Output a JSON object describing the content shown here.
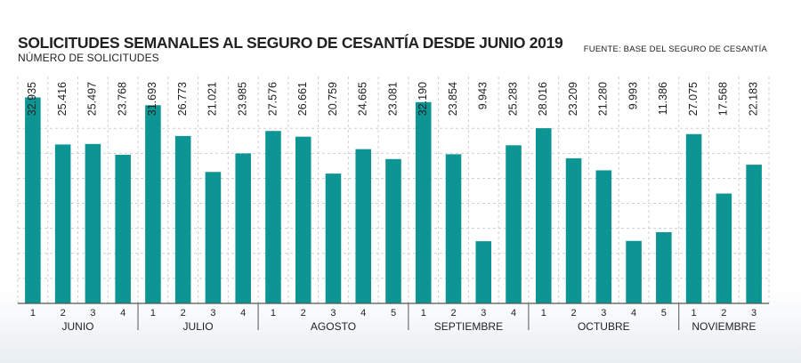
{
  "title": "SOLICITUDES SEMANALES AL SEGURO DE CESANTÍA DESDE JUNIO 2019",
  "subtitle": "NÚMERO DE SOLICITUDES",
  "source": "FUENTE: BASE DEL SEGURO DE CESANTÍA",
  "colors": {
    "bar": "#0c9592"
  },
  "chart_data": {
    "type": "bar",
    "title": "SOLICITUDES SEMANALES AL SEGURO DE CESANTÍA DESDE JUNIO 2019",
    "subtitle": "NÚMERO DE SOLICITUDES",
    "ylim": [
      0,
      36000
    ],
    "grid": true,
    "months": [
      {
        "name": "JUNIO",
        "weeks": [
          "1",
          "2",
          "3",
          "4"
        ],
        "values": [
          32935,
          25416,
          25497,
          23768
        ],
        "labels": [
          "32.935",
          "25.416",
          "25.497",
          "23.768"
        ]
      },
      {
        "name": "JULIO",
        "weeks": [
          "1",
          "2",
          "3",
          "4"
        ],
        "values": [
          31693,
          26773,
          21021,
          23985
        ],
        "labels": [
          "31.693",
          "26.773",
          "21.021",
          "23.985"
        ]
      },
      {
        "name": "AGOSTO",
        "weeks": [
          "1",
          "2",
          "3",
          "4",
          "5"
        ],
        "values": [
          27576,
          26661,
          20759,
          24665,
          23081
        ],
        "labels": [
          "27.576",
          "26.661",
          "20.759",
          "24.665",
          "23.081"
        ]
      },
      {
        "name": "SEPTIEMBRE",
        "weeks": [
          "1",
          "2",
          "3",
          "4"
        ],
        "values": [
          32190,
          23854,
          9943,
          25283
        ],
        "labels": [
          "32.190",
          "23.854",
          "9.943",
          "25.283"
        ]
      },
      {
        "name": "OCTUBRE",
        "weeks": [
          "1",
          "2",
          "3",
          "4",
          "5"
        ],
        "values": [
          28016,
          23209,
          21280,
          9993,
          11386
        ],
        "labels": [
          "28.016",
          "23.209",
          "21.280",
          "9.993",
          "11.386"
        ]
      },
      {
        "name": "NOVIEMBRE",
        "weeks": [
          "1",
          "2",
          "3"
        ],
        "values": [
          27075,
          17568,
          22183
        ],
        "labels": [
          "27.075",
          "17.568",
          "22.183"
        ]
      }
    ]
  }
}
